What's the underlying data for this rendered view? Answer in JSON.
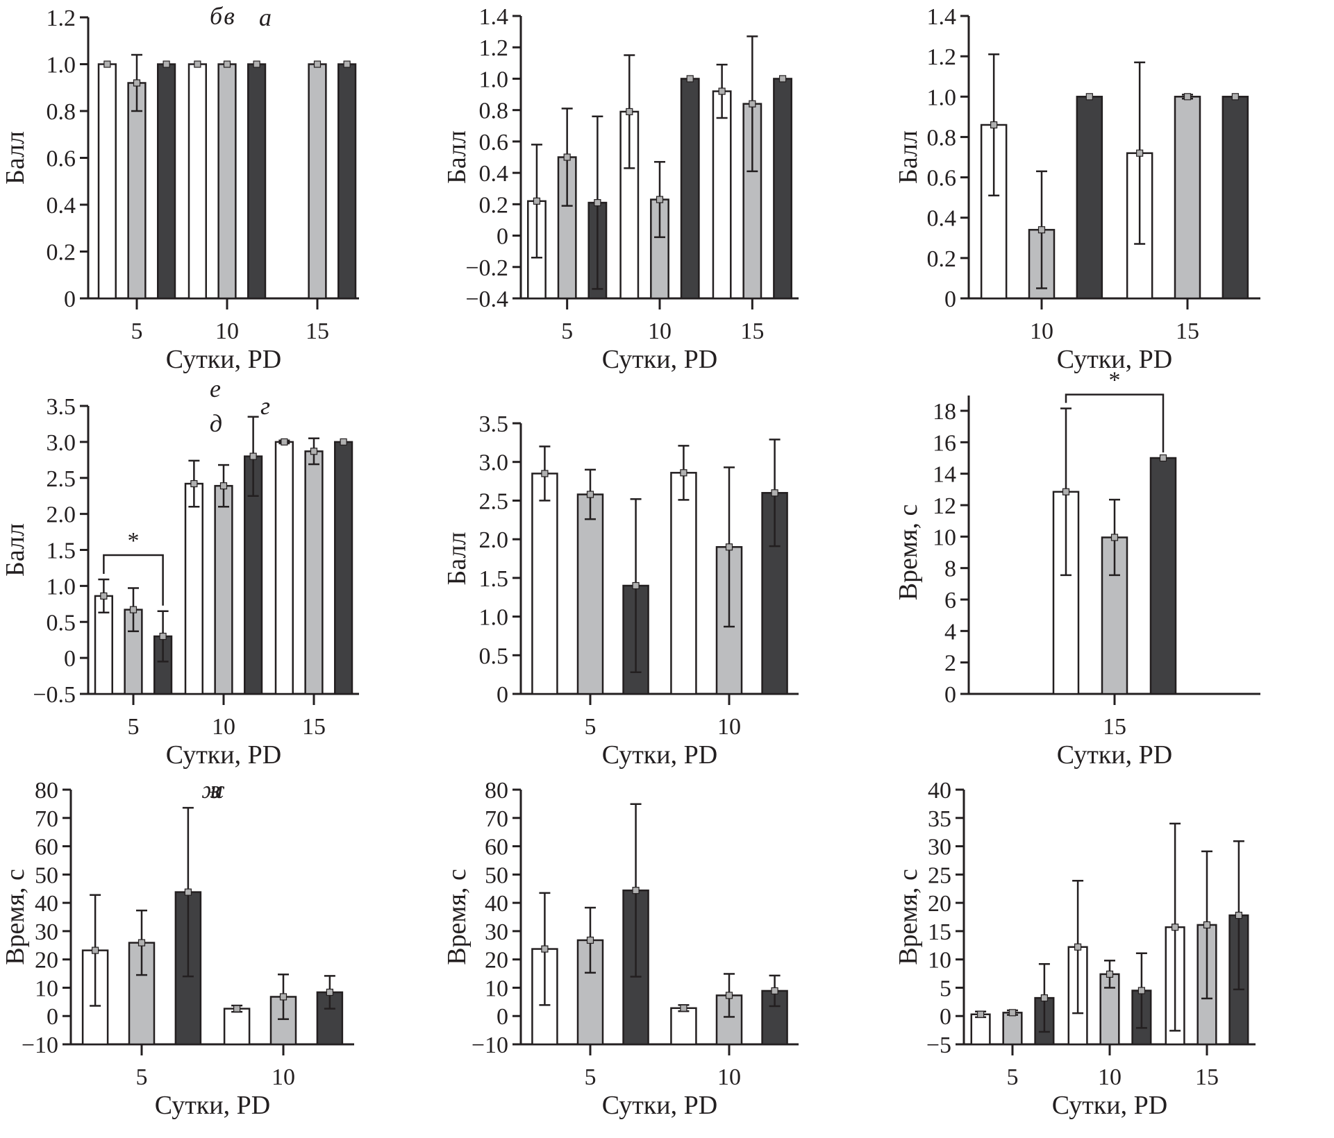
{
  "figure": {
    "series_colors": {
      "group1": "#ffffff",
      "group2": "#bcbdbf",
      "group3": "#404042"
    },
    "axis_color": "#231f20"
  },
  "chart_data": [
    {
      "panel": "а",
      "type": "bar",
      "title": "а",
      "xlabel": "Сутки, PD",
      "ylabel": "Балл",
      "ylim": [
        0,
        1.2
      ],
      "yticks": [
        0,
        0.2,
        0.4,
        0.6,
        0.8,
        1.0,
        1.2
      ],
      "ytick_labels": [
        "0",
        "0.2",
        "0.4",
        "0.6",
        "0.8",
        "1.0",
        "1.2"
      ],
      "categories": [
        "5",
        "10",
        "15"
      ],
      "series": [
        {
          "name": "group1",
          "values": [
            1.0,
            1.0,
            null
          ],
          "err": [
            0,
            0,
            null
          ]
        },
        {
          "name": "group2",
          "values": [
            0.92,
            1.0,
            1.0
          ],
          "err": [
            0.12,
            0,
            0
          ]
        },
        {
          "name": "group3",
          "values": [
            1.0,
            1.0,
            1.0
          ],
          "err": [
            0,
            0,
            0
          ]
        }
      ],
      "significance": []
    },
    {
      "panel": "б",
      "type": "bar",
      "title": "б",
      "xlabel": "Сутки, PD",
      "ylabel": "Балл",
      "ylim": [
        -0.4,
        1.4
      ],
      "yticks": [
        -0.4,
        -0.2,
        0,
        0.2,
        0.4,
        0.6,
        0.8,
        1.0,
        1.2,
        1.4
      ],
      "ytick_labels": [
        "−0.4",
        "−0.2",
        "0",
        "0.2",
        "0.4",
        "0.6",
        "0.8",
        "1.0",
        "1.2",
        "1.4"
      ],
      "categories": [
        "5",
        "10",
        "15"
      ],
      "series": [
        {
          "name": "group1",
          "values": [
            0.22,
            0.79,
            0.92
          ],
          "err": [
            0.36,
            0.36,
            0.17
          ]
        },
        {
          "name": "group2",
          "values": [
            0.5,
            0.23,
            0.84
          ],
          "err": [
            0.31,
            0.24,
            0.43
          ]
        },
        {
          "name": "group3",
          "values": [
            0.21,
            1.0,
            1.0
          ],
          "err": [
            0.55,
            0,
            0
          ]
        }
      ],
      "significance": []
    },
    {
      "panel": "в",
      "type": "bar",
      "title": "в",
      "xlabel": "Сутки, PD",
      "ylabel": "Балл",
      "ylim": [
        0,
        1.4
      ],
      "yticks": [
        0,
        0.2,
        0.4,
        0.6,
        0.8,
        1.0,
        1.2,
        1.4
      ],
      "ytick_labels": [
        "0",
        "0.2",
        "0.4",
        "0.6",
        "0.8",
        "1.0",
        "1.2",
        "1.4"
      ],
      "categories": [
        "10",
        "15"
      ],
      "series": [
        {
          "name": "group1",
          "values": [
            0.86,
            0.72
          ],
          "err": [
            0.35,
            0.45
          ]
        },
        {
          "name": "group2",
          "values": [
            0.34,
            1.0
          ],
          "err": [
            0.29,
            0.01
          ]
        },
        {
          "name": "group3",
          "values": [
            1.0,
            1.0
          ],
          "err": [
            0,
            0
          ]
        }
      ],
      "significance": []
    },
    {
      "panel": "г",
      "type": "bar",
      "title": "г",
      "xlabel": "Сутки, PD",
      "ylabel": "Балл",
      "ylim": [
        -0.5,
        3.5
      ],
      "yticks": [
        -0.5,
        0,
        0.5,
        1.0,
        1.5,
        2.0,
        2.5,
        3.0,
        3.5
      ],
      "ytick_labels": [
        "−0.5",
        "0",
        "0.5",
        "1.0",
        "1.5",
        "2.0",
        "2.5",
        "3.0",
        "3.5"
      ],
      "categories": [
        "5",
        "10",
        "15"
      ],
      "series": [
        {
          "name": "group1",
          "values": [
            0.86,
            2.42,
            3.0
          ],
          "err": [
            0.23,
            0.32,
            0.02
          ]
        },
        {
          "name": "group2",
          "values": [
            0.67,
            2.39,
            2.87
          ],
          "err": [
            0.3,
            0.29,
            0.18
          ]
        },
        {
          "name": "group3",
          "values": [
            0.3,
            2.8,
            3.0
          ],
          "err": [
            0.35,
            0.55,
            0
          ]
        }
      ],
      "significance": [
        {
          "category": "5",
          "from": "group1",
          "to": "group3",
          "label": "*"
        }
      ]
    },
    {
      "panel": "д",
      "type": "bar",
      "title": "д",
      "xlabel": "Сутки, PD",
      "ylabel": "Балл",
      "ylim": [
        0,
        3.5
      ],
      "yticks": [
        0,
        0.5,
        1.0,
        1.5,
        2.0,
        2.5,
        3.0,
        3.5
      ],
      "ytick_labels": [
        "0",
        "0.5",
        "1.0",
        "1.5",
        "2.0",
        "2.5",
        "3.0",
        "3.5"
      ],
      "categories": [
        "5",
        "10"
      ],
      "series": [
        {
          "name": "group1",
          "values": [
            2.85,
            2.86
          ],
          "err": [
            0.35,
            0.35
          ]
        },
        {
          "name": "group2",
          "values": [
            2.58,
            1.9
          ],
          "err": [
            0.32,
            1.03
          ]
        },
        {
          "name": "group3",
          "values": [
            1.4,
            2.6
          ],
          "err": [
            1.12,
            0.69
          ]
        }
      ],
      "significance": []
    },
    {
      "panel": "е",
      "type": "bar",
      "title": "е",
      "xlabel": "Сутки, PD",
      "ylabel": "Время, с",
      "ylim": [
        0,
        18
      ],
      "yticks": [
        0,
        2,
        4,
        6,
        8,
        10,
        12,
        14,
        16,
        18
      ],
      "ytick_labels": [
        "0",
        "2",
        "4",
        "6",
        "8",
        "10",
        "12",
        "14",
        "16",
        "18"
      ],
      "categories": [
        "15"
      ],
      "series": [
        {
          "name": "group1",
          "values": [
            12.85
          ],
          "err": [
            5.3
          ]
        },
        {
          "name": "group2",
          "values": [
            9.95
          ],
          "err": [
            2.4
          ]
        },
        {
          "name": "group3",
          "values": [
            15.0
          ],
          "err": [
            0
          ]
        }
      ],
      "significance": [
        {
          "category": "15",
          "from": "group1",
          "to": "group3",
          "label": "*"
        }
      ]
    },
    {
      "panel": "ж",
      "type": "bar",
      "title": "ж",
      "xlabel": "Сутки, PD",
      "ylabel": "Время, с",
      "ylim": [
        -10,
        80
      ],
      "yticks": [
        -10,
        0,
        10,
        20,
        30,
        40,
        50,
        60,
        70,
        80
      ],
      "ytick_labels": [
        "−10",
        "0",
        "10",
        "20",
        "30",
        "40",
        "50",
        "60",
        "70",
        "80"
      ],
      "categories": [
        "5",
        "10"
      ],
      "series": [
        {
          "name": "group1",
          "values": [
            23.2,
            2.6
          ],
          "err": [
            19.6,
            1.1
          ]
        },
        {
          "name": "group2",
          "values": [
            25.9,
            6.8
          ],
          "err": [
            11.4,
            7.9
          ]
        },
        {
          "name": "group3",
          "values": [
            43.8,
            8.4
          ],
          "err": [
            29.8,
            5.8
          ]
        }
      ],
      "significance": []
    },
    {
      "panel": "з",
      "type": "bar",
      "title": "з",
      "xlabel": "Сутки, PD",
      "ylabel": "Время, с",
      "ylim": [
        -10,
        80
      ],
      "yticks": [
        -10,
        0,
        10,
        20,
        30,
        40,
        50,
        60,
        70,
        80
      ],
      "ytick_labels": [
        "−10",
        "0",
        "10",
        "20",
        "30",
        "40",
        "50",
        "60",
        "70",
        "80"
      ],
      "categories": [
        "5",
        "10"
      ],
      "series": [
        {
          "name": "group1",
          "values": [
            23.7,
            2.8
          ],
          "err": [
            19.8,
            1.1
          ]
        },
        {
          "name": "group2",
          "values": [
            26.8,
            7.3
          ],
          "err": [
            11.5,
            7.6
          ]
        },
        {
          "name": "group3",
          "values": [
            44.4,
            8.9
          ],
          "err": [
            30.5,
            5.4
          ]
        }
      ],
      "significance": []
    },
    {
      "panel": "и",
      "type": "bar",
      "title": "и",
      "xlabel": "Сутки, PD",
      "ylabel": "Время, с",
      "ylim": [
        -5,
        40
      ],
      "yticks": [
        -5,
        0,
        5,
        10,
        15,
        20,
        25,
        30,
        35,
        40
      ],
      "ytick_labels": [
        "−5",
        "0",
        "5",
        "10",
        "15",
        "20",
        "25",
        "30",
        "35",
        "40"
      ],
      "categories": [
        "5",
        "10",
        "15"
      ],
      "series": [
        {
          "name": "group1",
          "values": [
            0.3,
            12.2,
            15.7
          ],
          "err": [
            0.5,
            11.7,
            18.3
          ]
        },
        {
          "name": "group2",
          "values": [
            0.6,
            7.4,
            16.1
          ],
          "err": [
            0.4,
            2.4,
            13.0
          ]
        },
        {
          "name": "group3",
          "values": [
            3.2,
            4.5,
            17.8
          ],
          "err": [
            6.0,
            6.6,
            13.1
          ]
        }
      ],
      "significance": []
    }
  ]
}
